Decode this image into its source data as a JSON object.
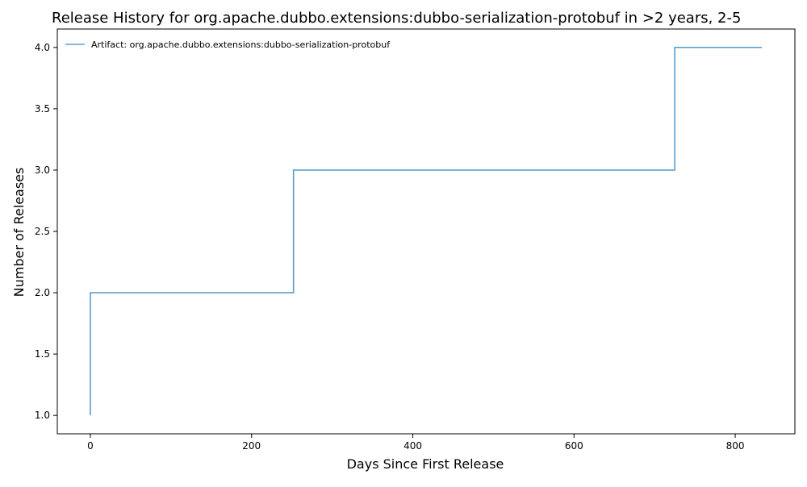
{
  "chart_data": {
    "type": "line",
    "step": true,
    "title": "Release History for org.apache.dubbo.extensions:dubbo-serialization-protobuf in >2 years, 2-5",
    "xlabel": "Days Since First Release",
    "ylabel": "Number of Releases",
    "xlim": [
      -41,
      874
    ],
    "ylim": [
      0.85,
      4.15
    ],
    "xticks": [
      0,
      200,
      400,
      600,
      800
    ],
    "yticks": [
      1.0,
      1.5,
      2.0,
      2.5,
      3.0,
      3.5,
      4.0
    ],
    "grid": false,
    "legend": "top-left",
    "series": [
      {
        "name": "Artifact: org.apache.dubbo.extensions:dubbo-serialization-protobuf",
        "color": "#5b9fc9",
        "x": [
          0,
          0,
          252,
          725,
          833
        ],
        "y": [
          1,
          2,
          3,
          4,
          4
        ]
      }
    ]
  }
}
